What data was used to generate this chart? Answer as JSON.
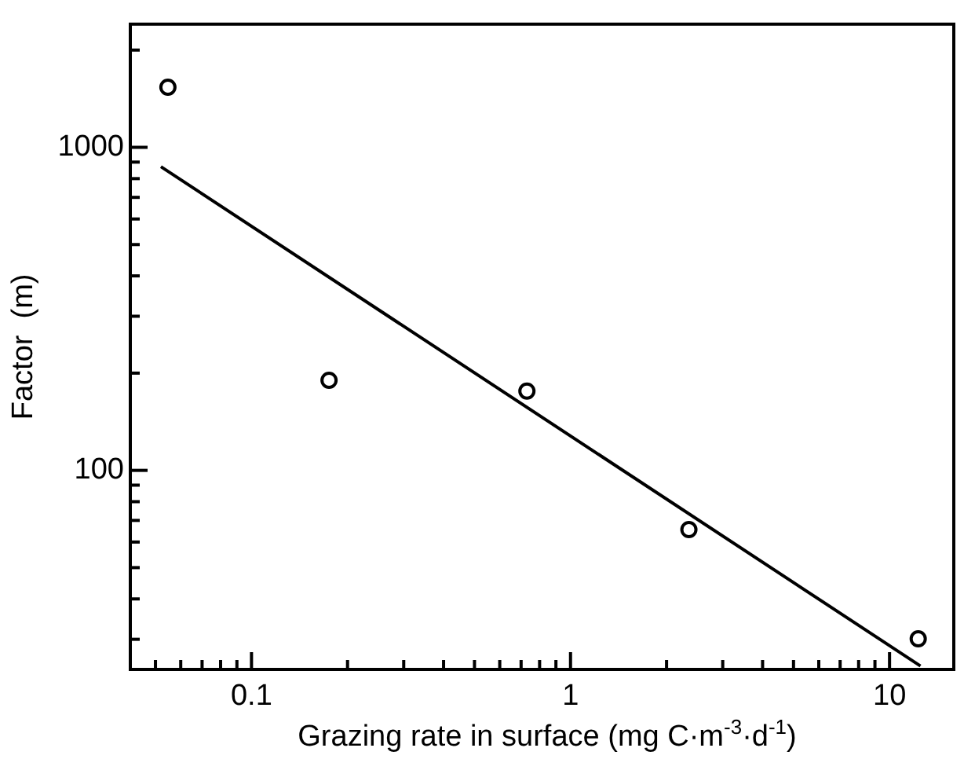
{
  "chart_data": {
    "type": "scatter",
    "xlabel": "Grazing rate in surface (mg C·m$^{-3}$·d$^{-1}$)",
    "ylabel": "Factor  (m)",
    "log": "xy",
    "xlim": [
      0.0417,
      15.9
    ],
    "ylim": [
      24.2,
      2405
    ],
    "xticks": [
      {
        "value": 0.05,
        "label": null
      },
      {
        "value": 0.06,
        "label": null
      },
      {
        "value": 0.07,
        "label": null
      },
      {
        "value": 0.08,
        "label": null
      },
      {
        "value": 0.09,
        "label": null
      },
      0.1,
      {
        "value": 0.2,
        "label": null
      },
      {
        "value": 0.3,
        "label": null
      },
      {
        "value": 0.4,
        "label": null
      },
      {
        "value": 0.5,
        "label": null
      },
      {
        "value": 0.6,
        "label": null
      },
      {
        "value": 0.7,
        "label": null
      },
      {
        "value": 0.8,
        "label": null
      },
      {
        "value": 0.9,
        "label": null
      },
      1,
      {
        "value": 2,
        "label": null
      },
      {
        "value": 3,
        "label": null
      },
      {
        "value": 4,
        "label": null
      },
      {
        "value": 5,
        "label": null
      },
      {
        "value": 6,
        "label": null
      },
      {
        "value": 7,
        "label": null
      },
      {
        "value": 8,
        "label": null
      },
      {
        "value": 9,
        "label": null
      },
      10
    ],
    "yticks": [
      {
        "value": 30,
        "label": null
      },
      {
        "value": 40,
        "label": null
      },
      {
        "value": 50,
        "label": null
      },
      {
        "value": 60,
        "label": null
      },
      {
        "value": 70,
        "label": null
      },
      {
        "value": 80,
        "label": null
      },
      {
        "value": 90,
        "label": null
      },
      100,
      {
        "value": 200,
        "label": null
      },
      {
        "value": 300,
        "label": null
      },
      {
        "value": 400,
        "label": null
      },
      {
        "value": 500,
        "label": null
      },
      {
        "value": 600,
        "label": null
      },
      {
        "value": 700,
        "label": null
      },
      {
        "value": 800,
        "label": null
      },
      {
        "value": 900,
        "label": null
      },
      1000,
      {
        "value": 2000,
        "label": null
      }
    ],
    "series": [
      {
        "marker": "circle",
        "color": "#000000",
        "x": [
          0.0547,
          0.175,
          0.73,
          2.35,
          12.3
        ],
        "values": [
          1535,
          190,
          176,
          65.6,
          30.1
        ]
      },
      {
        "type": "line",
        "marker": "none",
        "line_style": "solid",
        "color": "#000000",
        "x": [
          0.052,
          12.5
        ],
        "values": [
          871,
          24.8
        ]
      }
    ]
  }
}
